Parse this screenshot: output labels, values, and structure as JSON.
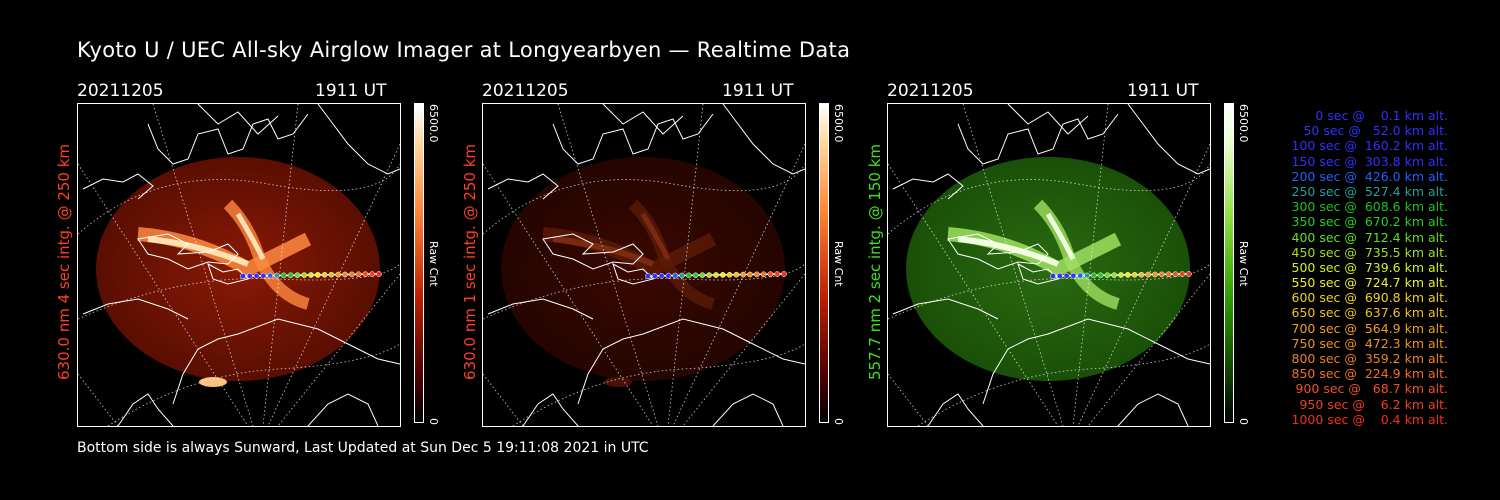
{
  "title": "Kyoto U / UEC All-sky Airglow Imager at Longyearbyen — Realtime Data",
  "panels": [
    {
      "date": "20211205",
      "time": "1911 UT",
      "side_label": "630.0 nm 4 sec intg. @ 250 km",
      "label_color": "#ff4020",
      "colorbar_max": "6500.0",
      "colorbar_label": "Raw Cnt",
      "colorbar_min": "0",
      "colormap": "red",
      "brightness": 1.0
    },
    {
      "date": "20211205",
      "time": "1911 UT",
      "side_label": "630.0 nm 1 sec intg. @ 250 km",
      "label_color": "#ff4020",
      "colorbar_max": "6500.0",
      "colorbar_label": "Raw Cnt",
      "colorbar_min": "0",
      "colormap": "red",
      "brightness": 0.35
    },
    {
      "date": "20211205",
      "time": "1911 UT",
      "side_label": "557.7 nm 2 sec intg. @ 150 km",
      "label_color": "#40e020",
      "colorbar_max": "6500.0",
      "colorbar_label": "Raw Cnt",
      "colorbar_min": "0",
      "colormap": "green",
      "brightness": 1.0
    }
  ],
  "footer": "Bottom side is always Sunward, Last Updated at Sun Dec  5 19:11:08 2021 in UTC",
  "legend": [
    {
      "text": "   0 sec @    0.1 km alt.",
      "color": "#3030ff"
    },
    {
      "text": "  50 sec @   52.0 km alt.",
      "color": "#3030ff"
    },
    {
      "text": " 100 sec @  160.2 km alt.",
      "color": "#3030ff"
    },
    {
      "text": " 150 sec @  303.8 km alt.",
      "color": "#3030ff"
    },
    {
      "text": " 200 sec @  426.0 km alt.",
      "color": "#2060ff"
    },
    {
      "text": " 250 sec @  527.4 km alt.",
      "color": "#20a0a0"
    },
    {
      "text": " 300 sec @  608.6 km alt.",
      "color": "#20c020"
    },
    {
      "text": " 350 sec @  670.2 km alt.",
      "color": "#20d020"
    },
    {
      "text": " 400 sec @  712.4 km alt.",
      "color": "#60e020"
    },
    {
      "text": " 450 sec @  735.5 km alt.",
      "color": "#a0e020"
    },
    {
      "text": " 500 sec @  739.6 km alt.",
      "color": "#d0f020"
    },
    {
      "text": " 550 sec @  724.7 km alt.",
      "color": "#f0f020"
    },
    {
      "text": " 600 sec @  690.8 km alt.",
      "color": "#f0d020"
    },
    {
      "text": " 650 sec @  637.6 km alt.",
      "color": "#f0c020"
    },
    {
      "text": " 700 sec @  564.9 km alt.",
      "color": "#f0a020"
    },
    {
      "text": " 750 sec @  472.3 km alt.",
      "color": "#f09020"
    },
    {
      "text": " 800 sec @  359.2 km alt.",
      "color": "#f08020"
    },
    {
      "text": " 850 sec @  224.9 km alt.",
      "color": "#f07020"
    },
    {
      "text": " 900 sec @   68.7 km alt.",
      "color": "#f05020"
    },
    {
      "text": " 950 sec @    6.2 km alt.",
      "color": "#f04020"
    },
    {
      "text": "1000 sec @    0.4 km alt.",
      "color": "#f03020"
    }
  ]
}
